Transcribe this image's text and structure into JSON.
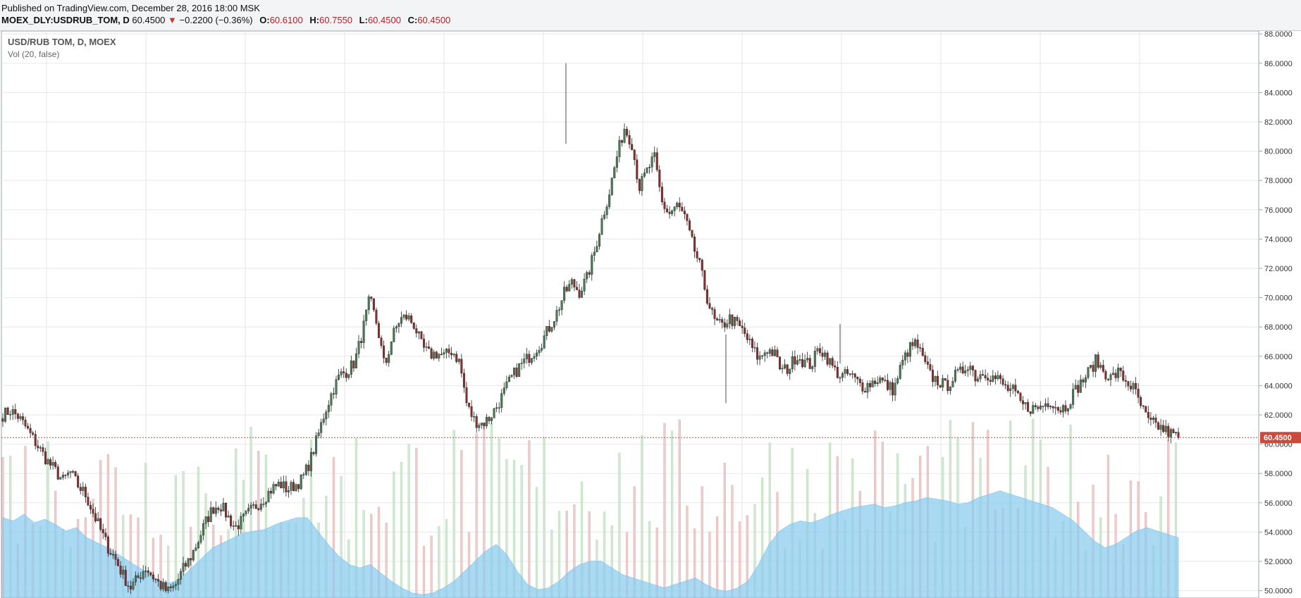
{
  "header": {
    "published": "Published on TradingView.com, December 28, 2016 18:00 MSK",
    "symbol": "MOEX_DLY:USDRUB_TOM, D",
    "last": "60.4500",
    "change_arrow": "▼",
    "change": "−0.2200 (−0.36%)",
    "open_label": "O:",
    "open": "60.6100",
    "high_label": "H:",
    "high": "60.7550",
    "low_label": "L:",
    "low": "60.4500",
    "close_label": "C:",
    "close": "60.4500"
  },
  "legend": {
    "series": "USD/RUB TOM, D, MOEX",
    "volume": "Vol (20, false)"
  },
  "colors": {
    "up": "#4a7c59",
    "down": "#8b2e2e",
    "volume_up": "#cfe6cf",
    "volume_down": "#ecc7c7",
    "volume_ma": "#8ecdf0",
    "last_price": "#cc4a3c",
    "grid": "#e6e8ea"
  },
  "chart_data": {
    "type": "candlestick",
    "title": "USD/RUB TOM, D, MOEX",
    "price_axis": {
      "ticks": [
        "50.0000",
        "52.0000",
        "54.0000",
        "56.0000",
        "58.0000",
        "60.0000",
        "62.0000",
        "64.0000",
        "66.0000",
        "68.0000",
        "70.0000",
        "72.0000",
        "74.0000",
        "76.0000",
        "78.0000",
        "80.0000",
        "82.0000",
        "84.0000",
        "86.0000",
        "88.0000"
      ],
      "range": [
        49.5,
        88.2
      ],
      "position": "right"
    },
    "last_price_label": "60.4500",
    "last_price": 60.45,
    "price_path": [
      62.0,
      62.3,
      61.9,
      61.2,
      60.4,
      59.6,
      58.8,
      58.2,
      57.5,
      58.1,
      57.2,
      56.6,
      55.4,
      54.2,
      53.0,
      52.2,
      51.1,
      50.2,
      50.8,
      51.6,
      51.0,
      50.4,
      49.9,
      50.3,
      51.4,
      52.2,
      53.3,
      54.6,
      55.6,
      55.9,
      55.1,
      54.3,
      54.8,
      55.4,
      55.9,
      56.4,
      57.0,
      57.3,
      56.9,
      57.2,
      57.6,
      58.8,
      60.4,
      62.2,
      63.6,
      64.7,
      65.0,
      65.6,
      67.6,
      69.9,
      68.1,
      65.2,
      67.3,
      68.5,
      68.7,
      68.1,
      66.6,
      66.1,
      66.2,
      66.0,
      66.4,
      65.6,
      62.6,
      61.6,
      61.4,
      61.8,
      62.6,
      63.6,
      64.6,
      65.3,
      65.8,
      66.4,
      67.0,
      68.0,
      69.0,
      70.3,
      71.0,
      70.4,
      71.3,
      73.1,
      75.3,
      77.2,
      79.6,
      81.6,
      80.6,
      77.5,
      78.6,
      79.6,
      76.5,
      75.7,
      76.3,
      75.6,
      73.8,
      72.3,
      70.1,
      68.4,
      68.0,
      68.6,
      68.2,
      67.6,
      66.6,
      65.8,
      66.5,
      66.2,
      65.0,
      65.2,
      66.1,
      65.6,
      65.4,
      66.6,
      66.0,
      65.1,
      64.6,
      64.8,
      64.3,
      63.9,
      64.2,
      64.5,
      64.0,
      63.7,
      65.4,
      66.5,
      66.9,
      65.6,
      64.6,
      64.3,
      63.9,
      64.6,
      64.9,
      65.6,
      64.5,
      65.0,
      64.6,
      64.4,
      63.8,
      63.6,
      62.7,
      62.5,
      62.4,
      62.7,
      63.0,
      62.4,
      62.6,
      63.5,
      64.2,
      64.9,
      65.7,
      65.0,
      64.5,
      64.9,
      64.3,
      63.8,
      62.6,
      61.5,
      61.3,
      61.0,
      60.7,
      60.45
    ],
    "volume_panel": {
      "ma_period": 20,
      "ma_path": [
        0.48,
        0.46,
        0.5,
        0.45,
        0.47,
        0.44,
        0.4,
        0.42,
        0.36,
        0.33,
        0.3,
        0.26,
        0.22,
        0.18,
        0.14,
        0.1,
        0.09,
        0.12,
        0.18,
        0.24,
        0.3,
        0.33,
        0.36,
        0.39,
        0.4,
        0.41,
        0.44,
        0.46,
        0.48,
        0.48,
        0.4,
        0.32,
        0.25,
        0.2,
        0.18,
        0.2,
        0.15,
        0.1,
        0.06,
        0.03,
        0.02,
        0.03,
        0.06,
        0.1,
        0.16,
        0.22,
        0.28,
        0.32,
        0.26,
        0.16,
        0.08,
        0.05,
        0.06,
        0.1,
        0.16,
        0.2,
        0.22,
        0.22,
        0.18,
        0.14,
        0.12,
        0.1,
        0.08,
        0.06,
        0.08,
        0.1,
        0.12,
        0.08,
        0.05,
        0.04,
        0.06,
        0.1,
        0.2,
        0.32,
        0.4,
        0.44,
        0.46,
        0.45,
        0.47,
        0.5,
        0.52,
        0.54,
        0.55,
        0.56,
        0.54,
        0.55,
        0.57,
        0.58,
        0.6,
        0.59,
        0.58,
        0.56,
        0.57,
        0.6,
        0.62,
        0.64,
        0.62,
        0.6,
        0.58,
        0.56,
        0.54,
        0.5,
        0.46,
        0.4,
        0.34,
        0.3,
        0.32,
        0.36,
        0.4,
        0.42,
        0.4,
        0.38,
        0.36
      ]
    }
  }
}
